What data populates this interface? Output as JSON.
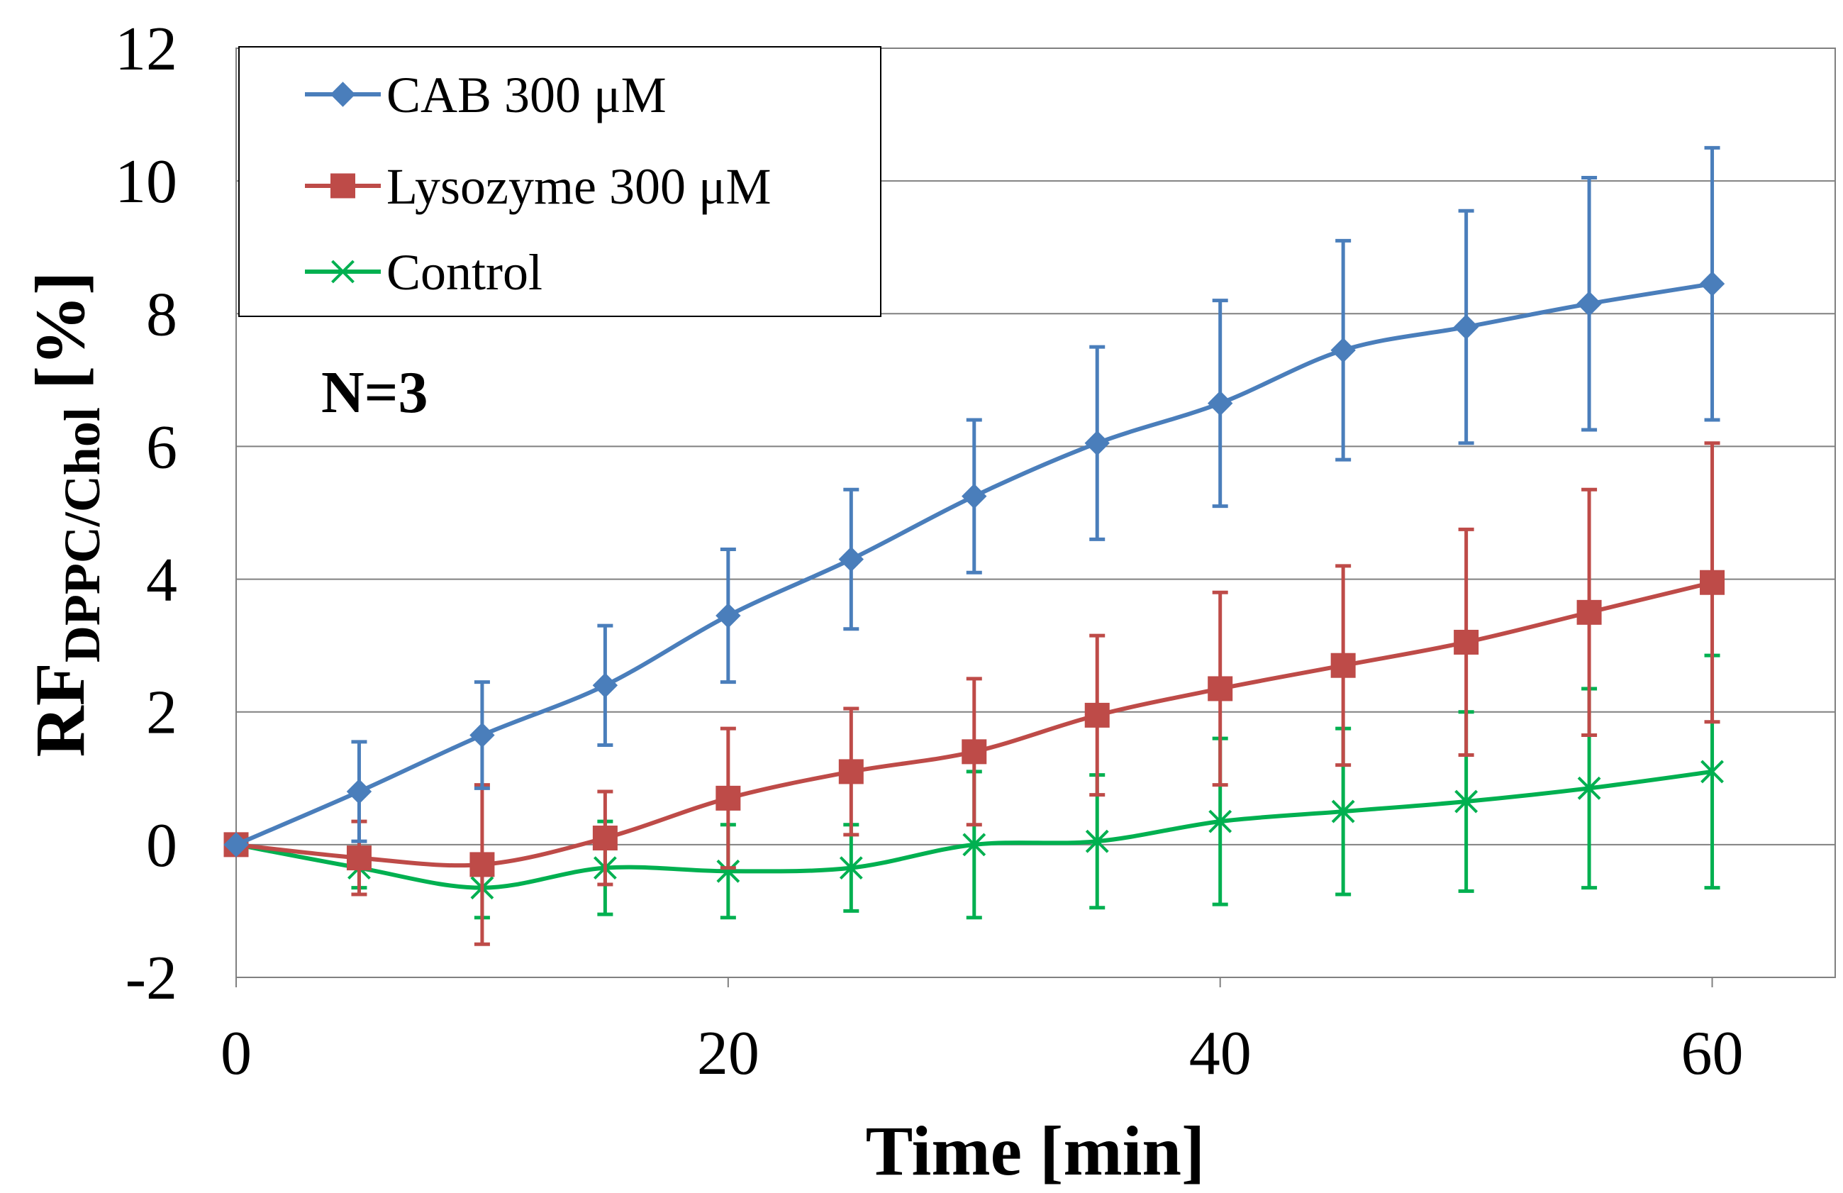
{
  "chart_data": {
    "type": "line",
    "title": "",
    "xlabel": "Time [min]",
    "ylabel": {
      "main": "RF",
      "subscript": "DPPC/Chol",
      "suffix": " [%]"
    },
    "xlim": [
      0,
      65
    ],
    "ylim": [
      -2,
      12
    ],
    "xticks": [
      0,
      20,
      40,
      60
    ],
    "yticks": [
      -2,
      0,
      2,
      4,
      6,
      8,
      10,
      12
    ],
    "grid": "horizontal",
    "legend_position": "top-left",
    "annotation": "N=3",
    "x": [
      0,
      5,
      10,
      15,
      20,
      25,
      30,
      35,
      40,
      45,
      50,
      55,
      60
    ],
    "series": [
      {
        "name": "CAB 300 μM",
        "color": "#4A7EBB",
        "marker": "diamond",
        "values": [
          0,
          0.8,
          1.65,
          2.4,
          3.45,
          4.3,
          5.25,
          6.05,
          6.65,
          7.45,
          7.8,
          8.15,
          8.45
        ],
        "errors": [
          0,
          0.75,
          0.8,
          0.9,
          1.0,
          1.05,
          1.15,
          1.45,
          1.55,
          1.65,
          1.75,
          1.9,
          2.05
        ]
      },
      {
        "name": "Lysozyme 300 μM",
        "color": "#BE4B48",
        "marker": "square",
        "values": [
          0,
          -0.2,
          -0.3,
          0.1,
          0.7,
          1.1,
          1.4,
          1.95,
          2.35,
          2.7,
          3.05,
          3.5,
          3.95
        ],
        "errors": [
          0,
          0.55,
          1.2,
          0.7,
          1.05,
          0.95,
          1.1,
          1.2,
          1.45,
          1.5,
          1.7,
          1.85,
          2.1
        ]
      },
      {
        "name": "Control",
        "color": "#00B050",
        "marker": "x",
        "values": [
          0,
          -0.35,
          -0.65,
          -0.35,
          -0.4,
          -0.35,
          0,
          0.05,
          0.35,
          0.5,
          0.65,
          0.85,
          1.1
        ],
        "errors": [
          0,
          0.3,
          0.45,
          0.7,
          0.7,
          0.65,
          1.1,
          1.0,
          1.25,
          1.25,
          1.35,
          1.5,
          1.75
        ]
      }
    ]
  }
}
